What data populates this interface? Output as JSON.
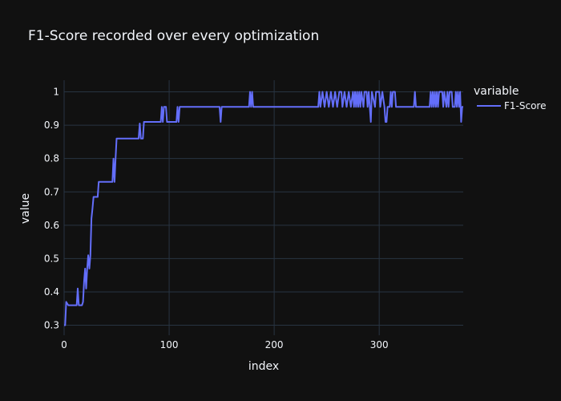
{
  "chart_data": {
    "type": "line",
    "title": "F1-Score recorded over every optimization",
    "xlabel": "index",
    "ylabel": "value",
    "xlim": [
      0,
      380
    ],
    "ylim": [
      0.27,
      1.035
    ],
    "x_ticks": [
      0,
      100,
      200,
      300
    ],
    "y_ticks": [
      0.3,
      0.4,
      0.5,
      0.6,
      0.7,
      0.8,
      0.9,
      1
    ],
    "y_tick_labels": [
      "0.3",
      "0.4",
      "0.5",
      "0.6",
      "0.7",
      "0.8",
      "0.9",
      "1"
    ],
    "grid": true,
    "legend": {
      "title": "variable",
      "placement": "top-right"
    },
    "series": [
      {
        "name": "F1-Score",
        "color": "#636efa",
        "points": [
          [
            0,
            0.3
          ],
          [
            1,
            0.3
          ],
          [
            2,
            0.37
          ],
          [
            3,
            0.365
          ],
          [
            4,
            0.36
          ],
          [
            12,
            0.36
          ],
          [
            13,
            0.41
          ],
          [
            14,
            0.36
          ],
          [
            17,
            0.36
          ],
          [
            18,
            0.37
          ],
          [
            19,
            0.43
          ],
          [
            20,
            0.47
          ],
          [
            21,
            0.41
          ],
          [
            22,
            0.47
          ],
          [
            23,
            0.51
          ],
          [
            24,
            0.47
          ],
          [
            25,
            0.51
          ],
          [
            26,
            0.62
          ],
          [
            27,
            0.65
          ],
          [
            28,
            0.685
          ],
          [
            32,
            0.685
          ],
          [
            33,
            0.73
          ],
          [
            46,
            0.73
          ],
          [
            47,
            0.8
          ],
          [
            48,
            0.73
          ],
          [
            49,
            0.8
          ],
          [
            50,
            0.86
          ],
          [
            71,
            0.86
          ],
          [
            72,
            0.905
          ],
          [
            73,
            0.86
          ],
          [
            75,
            0.86
          ],
          [
            76,
            0.91
          ],
          [
            92,
            0.91
          ],
          [
            93,
            0.955
          ],
          [
            94,
            0.91
          ],
          [
            95,
            0.955
          ],
          [
            97,
            0.955
          ],
          [
            98,
            0.91
          ],
          [
            107,
            0.91
          ],
          [
            108,
            0.955
          ],
          [
            109,
            0.91
          ],
          [
            110,
            0.955
          ],
          [
            148,
            0.955
          ],
          [
            149,
            0.91
          ],
          [
            150,
            0.955
          ],
          [
            176,
            0.955
          ],
          [
            177,
            1.0
          ],
          [
            178,
            0.955
          ],
          [
            179,
            1.0
          ],
          [
            180,
            0.955
          ],
          [
            242,
            0.955
          ],
          [
            243,
            1.0
          ],
          [
            244,
            0.955
          ],
          [
            246,
            1.0
          ],
          [
            248,
            0.955
          ],
          [
            250,
            1.0
          ],
          [
            252,
            0.955
          ],
          [
            254,
            1.0
          ],
          [
            256,
            0.955
          ],
          [
            258,
            1.0
          ],
          [
            260,
            0.955
          ],
          [
            262,
            1.0
          ],
          [
            264,
            1.0
          ],
          [
            265,
            0.955
          ],
          [
            267,
            1.0
          ],
          [
            269,
            0.955
          ],
          [
            271,
            1.0
          ],
          [
            273,
            0.955
          ],
          [
            275,
            1.0
          ],
          [
            276,
            0.955
          ],
          [
            277,
            1.0
          ],
          [
            278,
            0.955
          ],
          [
            279,
            1.0
          ],
          [
            280,
            0.955
          ],
          [
            281,
            1.0
          ],
          [
            282,
            0.955
          ],
          [
            283,
            1.0
          ],
          [
            285,
            0.955
          ],
          [
            286,
            1.0
          ],
          [
            288,
            1.0
          ],
          [
            289,
            0.955
          ],
          [
            290,
            1.0
          ],
          [
            292,
            0.91
          ],
          [
            293,
            1.0
          ],
          [
            296,
            0.955
          ],
          [
            297,
            1.0
          ],
          [
            300,
            1.0
          ],
          [
            301,
            0.955
          ],
          [
            303,
            1.0
          ],
          [
            305,
            0.955
          ],
          [
            306,
            0.91
          ],
          [
            307,
            0.91
          ],
          [
            308,
            0.955
          ],
          [
            310,
            0.955
          ],
          [
            311,
            1.0
          ],
          [
            312,
            0.955
          ],
          [
            313,
            1.0
          ],
          [
            315,
            1.0
          ],
          [
            316,
            0.955
          ],
          [
            333,
            0.955
          ],
          [
            334,
            1.0
          ],
          [
            335,
            0.955
          ],
          [
            348,
            0.955
          ],
          [
            349,
            1.0
          ],
          [
            350,
            0.955
          ],
          [
            351,
            1.0
          ],
          [
            352,
            0.955
          ],
          [
            353,
            1.0
          ],
          [
            354,
            0.955
          ],
          [
            355,
            1.0
          ],
          [
            356,
            0.955
          ],
          [
            357,
            1.0
          ],
          [
            360,
            1.0
          ],
          [
            361,
            0.955
          ],
          [
            362,
            1.0
          ],
          [
            364,
            0.955
          ],
          [
            365,
            1.0
          ],
          [
            366,
            0.955
          ],
          [
            367,
            1.0
          ],
          [
            369,
            1.0
          ],
          [
            370,
            0.955
          ],
          [
            372,
            0.955
          ],
          [
            373,
            1.0
          ],
          [
            374,
            0.955
          ],
          [
            375,
            1.0
          ],
          [
            376,
            0.955
          ],
          [
            377,
            1.0
          ],
          [
            378,
            0.91
          ],
          [
            379,
            0.955
          ],
          [
            380,
            0.955
          ]
        ]
      }
    ]
  }
}
